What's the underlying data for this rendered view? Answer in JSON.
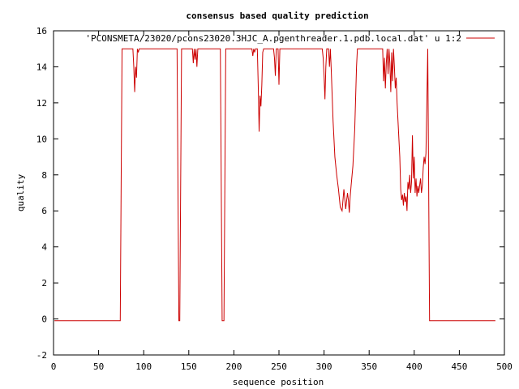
{
  "chart_data": {
    "type": "line",
    "title": "consensus based quality prediction",
    "xlabel": "sequence position",
    "ylabel": "quality",
    "xlim": [
      0,
      500
    ],
    "ylim": [
      -2,
      16
    ],
    "xticks": [
      0,
      50,
      100,
      150,
      200,
      250,
      300,
      350,
      400,
      450,
      500
    ],
    "yticks": [
      -2,
      0,
      2,
      4,
      6,
      8,
      10,
      12,
      14,
      16
    ],
    "grid": false,
    "legend_position": "top-right",
    "series": [
      {
        "name": "'PCONSMETA/23020/pcons23020.3HJC_A.pgenthreader.1.pdb.local.dat' u 1:2",
        "color": "#cc0000",
        "points": [
          [
            1,
            -0.1
          ],
          [
            74,
            -0.1
          ],
          [
            75,
            7.5
          ],
          [
            76,
            15
          ],
          [
            88,
            15
          ],
          [
            89,
            14
          ],
          [
            90,
            12.6
          ],
          [
            91,
            14
          ],
          [
            92,
            13.4
          ],
          [
            93,
            15
          ],
          [
            94,
            14.8
          ],
          [
            95,
            15
          ],
          [
            137,
            15
          ],
          [
            138,
            7.5
          ],
          [
            139,
            -0.1
          ],
          [
            140,
            -0.1
          ],
          [
            141,
            7.5
          ],
          [
            142,
            15
          ],
          [
            154,
            15
          ],
          [
            155,
            14.2
          ],
          [
            156,
            15
          ],
          [
            157,
            14.4
          ],
          [
            158,
            15
          ],
          [
            159,
            14
          ],
          [
            160,
            15
          ],
          [
            185,
            15
          ],
          [
            186,
            7.5
          ],
          [
            187,
            -0.1
          ],
          [
            189,
            -0.1
          ],
          [
            190,
            7.5
          ],
          [
            191,
            15
          ],
          [
            220,
            15
          ],
          [
            221,
            14.6
          ],
          [
            222,
            15
          ],
          [
            223,
            14.8
          ],
          [
            224,
            15
          ],
          [
            226,
            15
          ],
          [
            227,
            13
          ],
          [
            228,
            10.4
          ],
          [
            229,
            12.4
          ],
          [
            230,
            11.8
          ],
          [
            231,
            13
          ],
          [
            232,
            14.8
          ],
          [
            233,
            15
          ],
          [
            244,
            15
          ],
          [
            245,
            14.5
          ],
          [
            246,
            13.5
          ],
          [
            247,
            15
          ],
          [
            249,
            15
          ],
          [
            250,
            13
          ],
          [
            251,
            15
          ],
          [
            298,
            15
          ],
          [
            299,
            14.5
          ],
          [
            300,
            13.5
          ],
          [
            301,
            12.2
          ],
          [
            302,
            14
          ],
          [
            303,
            15
          ],
          [
            305,
            15
          ],
          [
            306,
            14
          ],
          [
            307,
            15
          ],
          [
            308,
            13.8
          ],
          [
            310,
            11
          ],
          [
            312,
            9
          ],
          [
            314,
            8
          ],
          [
            316,
            7.2
          ],
          [
            318,
            6.2
          ],
          [
            320,
            6
          ],
          [
            322,
            7.2
          ],
          [
            324,
            6.1
          ],
          [
            326,
            7
          ],
          [
            327,
            6.6
          ],
          [
            328,
            5.9
          ],
          [
            329,
            6.8
          ],
          [
            330,
            7.4
          ],
          [
            332,
            8.5
          ],
          [
            334,
            10.5
          ],
          [
            336,
            14
          ],
          [
            337,
            15
          ],
          [
            365,
            15
          ],
          [
            366,
            13.2
          ],
          [
            367,
            14.5
          ],
          [
            368,
            12.8
          ],
          [
            369,
            14.2
          ],
          [
            370,
            15
          ],
          [
            371,
            13.6
          ],
          [
            372,
            15
          ],
          [
            373,
            14.2
          ],
          [
            374,
            12.6
          ],
          [
            375,
            14.8
          ],
          [
            376,
            13.2
          ],
          [
            377,
            15
          ],
          [
            378,
            14
          ],
          [
            379,
            12.8
          ],
          [
            380,
            13.4
          ],
          [
            381,
            12
          ],
          [
            382,
            11
          ],
          [
            384,
            9
          ],
          [
            385,
            7.2
          ],
          [
            386,
            6.6
          ],
          [
            387,
            6.9
          ],
          [
            388,
            6.3
          ],
          [
            389,
            7
          ],
          [
            390,
            6.5
          ],
          [
            391,
            6.8
          ],
          [
            392,
            6
          ],
          [
            393,
            7.6
          ],
          [
            394,
            7.2
          ],
          [
            395,
            8
          ],
          [
            396,
            7
          ],
          [
            397,
            7.6
          ],
          [
            398,
            10.2
          ],
          [
            399,
            7.8
          ],
          [
            400,
            9
          ],
          [
            401,
            7
          ],
          [
            402,
            7.8
          ],
          [
            403,
            6.8
          ],
          [
            404,
            7.4
          ],
          [
            405,
            7
          ],
          [
            406,
            7.4
          ],
          [
            407,
            7.8
          ],
          [
            408,
            7
          ],
          [
            409,
            7.4
          ],
          [
            410,
            8.4
          ],
          [
            411,
            9
          ],
          [
            412,
            8.6
          ],
          [
            413,
            9.2
          ],
          [
            414,
            12
          ],
          [
            415,
            15
          ],
          [
            416,
            7.5
          ],
          [
            417,
            -0.1
          ],
          [
            490,
            -0.1
          ]
        ]
      }
    ]
  }
}
